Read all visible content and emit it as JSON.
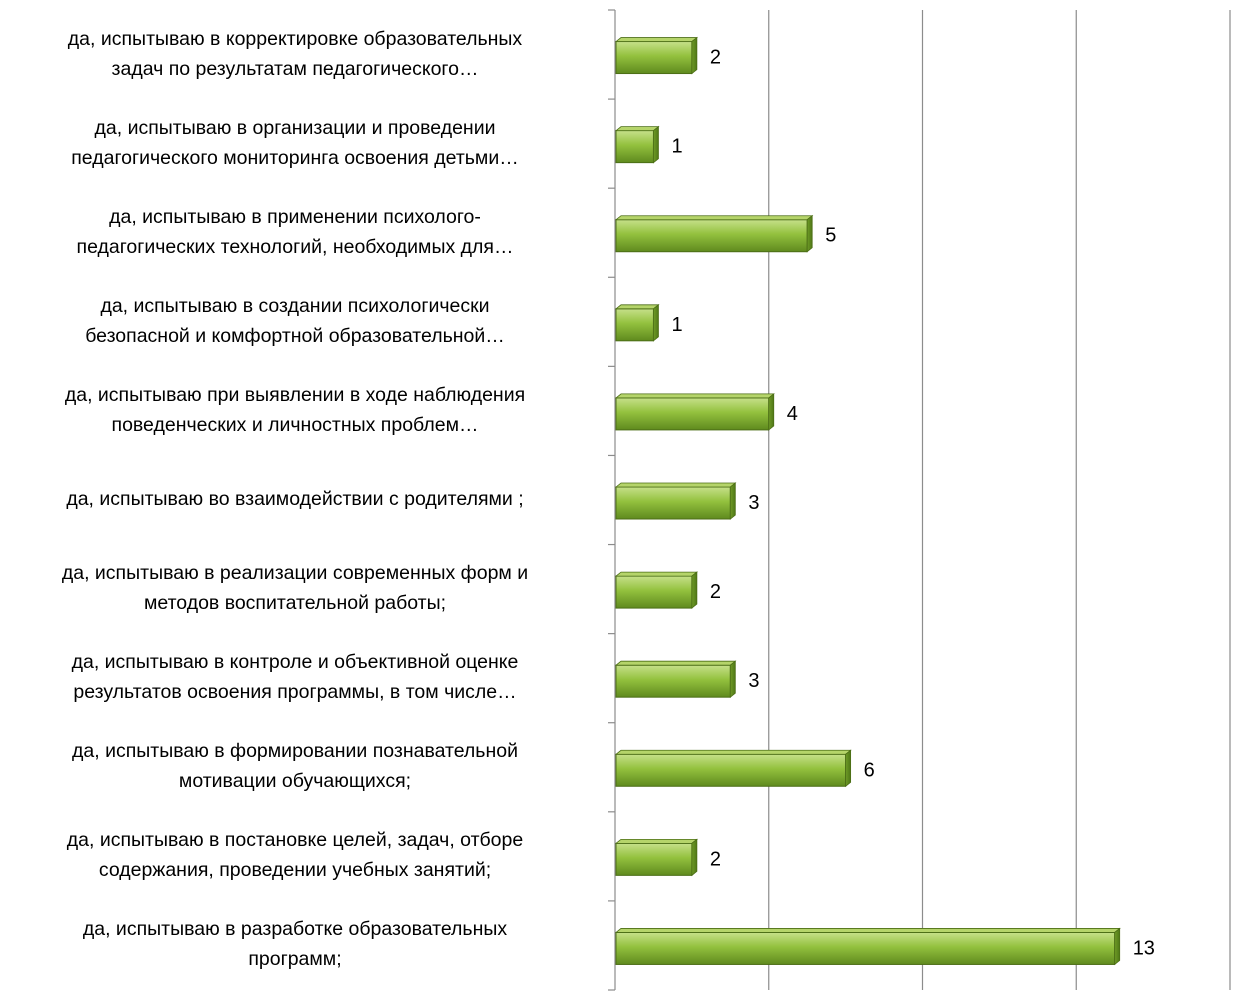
{
  "chart_data": {
    "type": "bar",
    "orientation": "horizontal",
    "categories": [
      [
        "да, испытываю в корректировке образовательных",
        "задач по результатам педагогического…"
      ],
      [
        "да, испытываю в организации и проведении",
        "педагогического мониторинга освоения детьми…"
      ],
      [
        "да, испытываю в применении психолого-",
        "педагогических технологий, необходимых для…"
      ],
      [
        "да, испытываю в создании психологически",
        "безопасной и комфортной образовательной…"
      ],
      [
        "да, испытываю при выявлении в ходе наблюдения",
        "поведенческих и личностных проблем…"
      ],
      [
        "да, испытываю во взаимодействии с родителями ;"
      ],
      [
        "да, испытываю в реализации современных форм и",
        "методов воспитательной работы;"
      ],
      [
        "да, испытываю в контроле и объективной оценке",
        "результатов освоения программы, в том числе…"
      ],
      [
        "да, испытываю в формировании познавательной",
        "мотивации обучающихся;"
      ],
      [
        "да, испытываю в постановке целей, задач, отборе",
        "содержания, проведении учебных занятий;"
      ],
      [
        "да, испытываю в разработке образовательных",
        "программ;"
      ]
    ],
    "values": [
      2,
      1,
      5,
      1,
      4,
      3,
      2,
      3,
      6,
      2,
      13
    ],
    "xlim": [
      0,
      16
    ],
    "grid": true,
    "bar_color": "#8db83a",
    "legend": "none"
  }
}
